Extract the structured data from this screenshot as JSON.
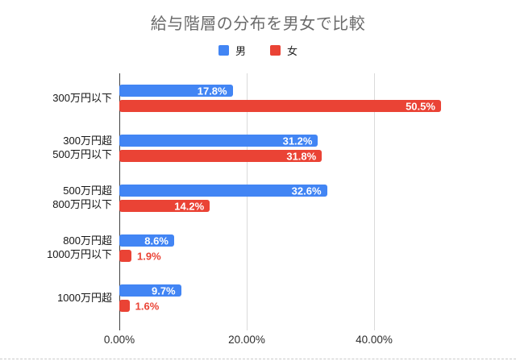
{
  "chart_data": {
    "type": "bar",
    "orientation": "horizontal",
    "title": "給与階層の分布を男女で比較",
    "categories": [
      "300万円以下",
      "300万円超\n500万円以下",
      "500万円超\n800万円以下",
      "800万円超\n1000万円以下",
      "1000万円超"
    ],
    "series": [
      {
        "name": "男",
        "color": "#4285f4",
        "values": [
          17.8,
          31.2,
          32.6,
          8.6,
          9.7
        ],
        "labels": [
          "17.8%",
          "31.2%",
          "32.6%",
          "8.6%",
          "9.7%"
        ]
      },
      {
        "name": "女",
        "color": "#ea4335",
        "values": [
          50.5,
          31.8,
          14.2,
          1.9,
          1.6
        ],
        "labels": [
          "50.5%",
          "31.8%",
          "14.2%",
          "1.9%",
          "1.6%"
        ]
      }
    ],
    "x_ticks": [
      "0.00%",
      "20.00%",
      "40.00%"
    ],
    "x_tick_values": [
      0,
      20,
      40
    ],
    "xlim": [
      0,
      60
    ],
    "grid": true,
    "legend_position": "top",
    "value_label_inside_color": "#ffffff",
    "axis_line_color": "#424242",
    "gridline_color": "#dadada",
    "title_color": "#6b6b6b"
  }
}
